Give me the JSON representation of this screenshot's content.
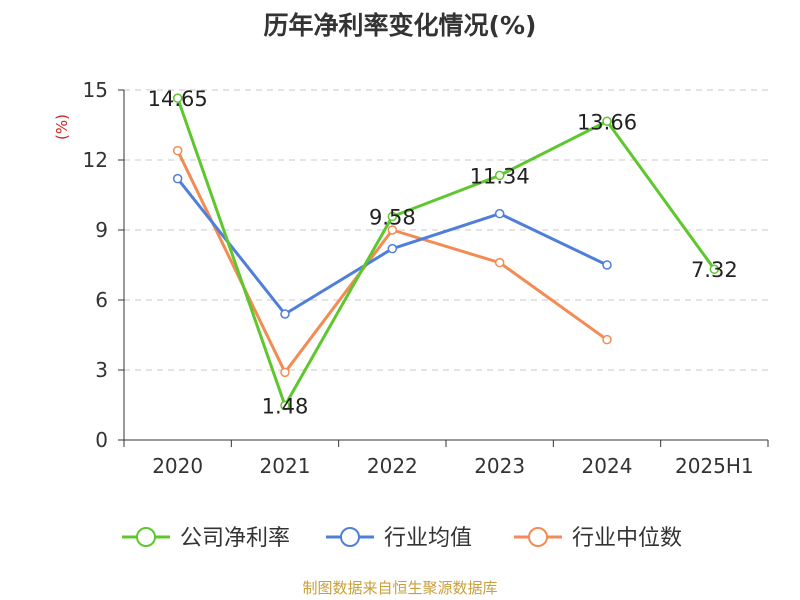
{
  "chart_data": {
    "type": "line",
    "title": "历年净利率变化情况(%)",
    "ylabel": "(%)",
    "xlabel": "",
    "categories": [
      "2020",
      "2021",
      "2022",
      "2023",
      "2024",
      "2025H1"
    ],
    "ylim": [
      0,
      15
    ],
    "yticks": [
      0,
      3,
      6,
      9,
      12,
      15
    ],
    "grid": "horizontal dashed",
    "legend_position": "bottom",
    "series": [
      {
        "name": "公司净利率",
        "color": "#5ec72d",
        "values": [
          14.65,
          1.48,
          9.58,
          11.34,
          13.66,
          7.32
        ],
        "labels": [
          "14.65",
          "1.48",
          "9.58",
          "11.34",
          "13.66",
          "7.32"
        ]
      },
      {
        "name": "行业均值",
        "color": "#4f7fd9",
        "values": [
          11.2,
          5.4,
          8.2,
          9.7,
          7.5,
          null
        ]
      },
      {
        "name": "行业中位数",
        "color": "#f28b54",
        "values": [
          12.4,
          2.9,
          9.0,
          7.6,
          4.3,
          null
        ]
      }
    ],
    "source": "制图数据来自恒生聚源数据库"
  }
}
